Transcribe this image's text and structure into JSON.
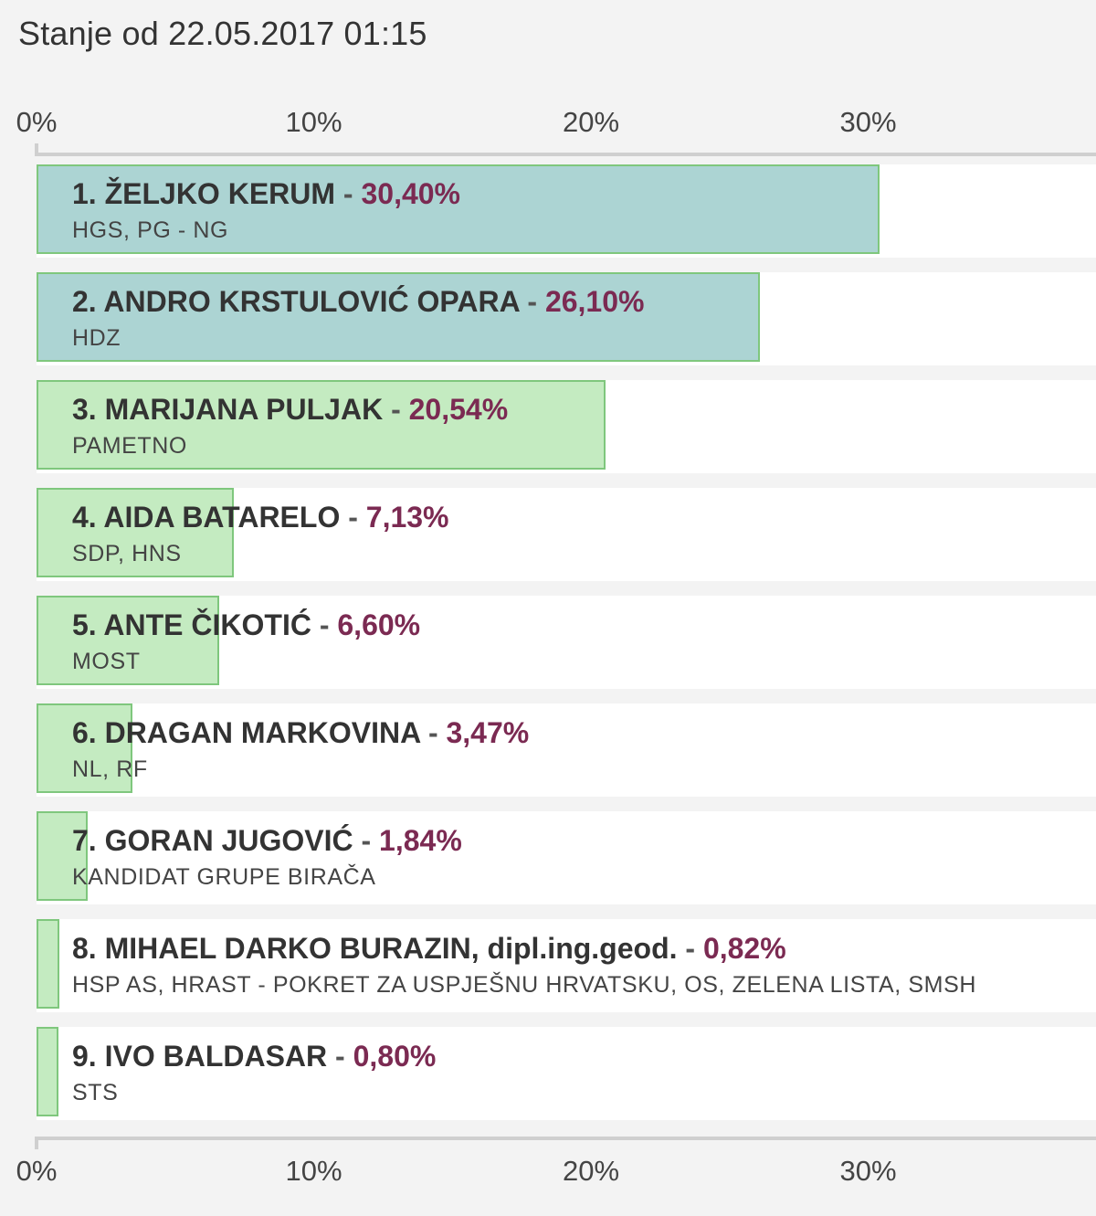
{
  "status_text": "Stanje od 22.05.2017 01:15",
  "colors": {
    "leading_bar": "#acd4d3",
    "other_bar": "#c4ebc1",
    "bar_border": "#7fc77d",
    "percent_text": "#7b2a52",
    "background": "#f3f3f3"
  },
  "axis_ticks": [
    "0%",
    "10%",
    "20%",
    "30%"
  ],
  "chart_data": {
    "type": "bar",
    "orientation": "horizontal",
    "xlim": [
      0,
      37.6
    ],
    "x_ticks": [
      0,
      10,
      20,
      30
    ],
    "x_tick_labels": [
      "0%",
      "10%",
      "20%",
      "30%"
    ],
    "grid": false,
    "categories": [
      "1. ŽELJKO KERUM",
      "2. ANDRO KRSTULOVIĆ OPARA",
      "3. MARIJANA PULJAK",
      "4. AIDA BATARELO",
      "5. ANTE ČIKOTIĆ",
      "6. DRAGAN MARKOVINA",
      "7. GORAN JUGOVIĆ",
      "8. MIHAEL DARKO BURAZIN, dipl.ing.geod.",
      "9. IVO BALDASAR"
    ],
    "values": [
      30.4,
      26.1,
      20.54,
      7.13,
      6.6,
      3.47,
      1.84,
      0.82,
      0.8
    ],
    "rows": [
      {
        "name": "1. ŽELJKO KERUM",
        "sep": " - ",
        "pct_label": "30,40%",
        "value": 30.4,
        "party": "HGS, PG - NG",
        "leading": true
      },
      {
        "name": "2. ANDRO KRSTULOVIĆ OPARA",
        "sep": " - ",
        "pct_label": "26,10%",
        "value": 26.1,
        "party": "HDZ",
        "leading": true
      },
      {
        "name": "3. MARIJANA PULJAK",
        "sep": " - ",
        "pct_label": "20,54%",
        "value": 20.54,
        "party": "PAMETNO",
        "leading": false
      },
      {
        "name": "4. AIDA BATARELO",
        "sep": " - ",
        "pct_label": "7,13%",
        "value": 7.13,
        "party": "SDP, HNS",
        "leading": false
      },
      {
        "name": "5. ANTE ČIKOTIĆ",
        "sep": " - ",
        "pct_label": "6,60%",
        "value": 6.6,
        "party": "MOST",
        "leading": false
      },
      {
        "name": "6. DRAGAN MARKOVINA",
        "sep": " - ",
        "pct_label": "3,47%",
        "value": 3.47,
        "party": "NL, RF",
        "leading": false
      },
      {
        "name": "7. GORAN JUGOVIĆ",
        "sep": " - ",
        "pct_label": "1,84%",
        "value": 1.84,
        "party": "KANDIDAT GRUPE BIRAČA",
        "leading": false
      },
      {
        "name": "8. MIHAEL DARKO BURAZIN, dipl.ing.geod.",
        "sep": " - ",
        "pct_label": "0,82%",
        "value": 0.82,
        "party": "HSP AS, HRAST - POKRET ZA USPJEŠNU HRVATSKU, OS, ZELENA LISTA, SMSH",
        "leading": false
      },
      {
        "name": "9. IVO BALDASAR",
        "sep": " - ",
        "pct_label": "0,80%",
        "value": 0.8,
        "party": "STS",
        "leading": false
      }
    ]
  }
}
